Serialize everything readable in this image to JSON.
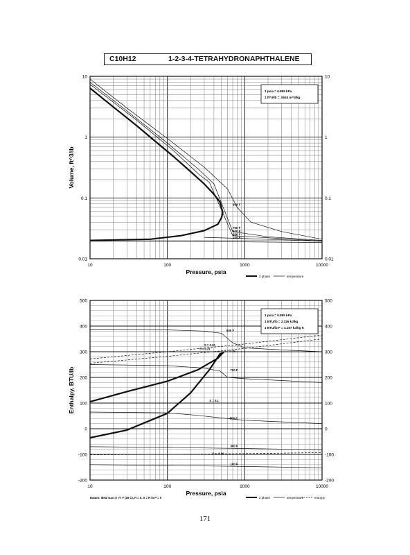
{
  "header": {
    "formula": "C10H12",
    "name": "1-2-3-4-TETRAHYDRONAPHTHALENE"
  },
  "page_number": "171",
  "chart_data": [
    {
      "type": "line",
      "xlabel": "Pressure,  psia",
      "ylabel": "Volume, ft^3/lb",
      "x_scale": "log",
      "y_scale": "log",
      "xlim": [
        10,
        10000
      ],
      "ylim": [
        0.01,
        10
      ],
      "x_ticks": [
        "10",
        "100",
        "1000",
        "10000"
      ],
      "y_ticks": [
        "0.01",
        "0.1",
        "1",
        "10"
      ],
      "conversion_box": [
        "1 psia  =  6.895 kPa",
        "1 ft^3/lb  =  .0624 m^3/kg"
      ],
      "legend": [
        "2 phase",
        "temperature"
      ],
      "isotherm_labels": [
        "900 F",
        "700 F",
        "500 F",
        "300 F",
        "100 F"
      ],
      "series": [
        {
          "name": "2 phase",
          "style": "thick",
          "x": [
            10,
            15,
            25,
            40,
            70,
            120,
            200,
            300,
            400,
            480,
            520,
            500,
            450,
            300,
            150,
            60,
            25,
            10
          ],
          "y": [
            6.4,
            4.2,
            2.5,
            1.55,
            0.85,
            0.48,
            0.27,
            0.17,
            0.115,
            0.085,
            0.058,
            0.047,
            0.037,
            0.029,
            0.024,
            0.021,
            0.0205,
            0.02
          ]
        },
        {
          "name": "900 F",
          "style": "thin",
          "x": [
            10,
            30,
            100,
            300,
            600,
            800,
            1200,
            3000,
            10000
          ],
          "y": [
            9.0,
            3.0,
            0.95,
            0.32,
            0.14,
            0.07,
            0.04,
            0.028,
            0.021
          ]
        },
        {
          "name": "700 F",
          "style": "thin",
          "x": [
            10,
            30,
            100,
            250,
            400,
            700,
            2000,
            10000
          ],
          "y": [
            8.0,
            2.7,
            0.8,
            0.3,
            0.17,
            0.028,
            0.023,
            0.02
          ]
        },
        {
          "name": "500 F",
          "style": "thin",
          "x": [
            10,
            40,
            120,
            250,
            350,
            700,
            3000,
            10000
          ],
          "y": [
            7.4,
            1.9,
            0.6,
            0.25,
            0.18,
            0.024,
            0.0215,
            0.0195
          ]
        },
        {
          "name": "300 F",
          "style": "thin",
          "x": [
            300,
            1000,
            10000
          ],
          "y": [
            0.0225,
            0.0215,
            0.0195
          ]
        },
        {
          "name": "100 F",
          "style": "thin",
          "x": [
            10,
            1000,
            10000
          ],
          "y": [
            0.0195,
            0.019,
            0.0185
          ]
        }
      ]
    },
    {
      "type": "line",
      "xlabel": "Pressure,  psia",
      "ylabel": "Enthalpy, BTU/lb",
      "x_scale": "log",
      "xlim": [
        10,
        10000
      ],
      "ylim": [
        -200,
        500
      ],
      "x_ticks": [
        "10",
        "100",
        "1000",
        "10000"
      ],
      "y_ticks": [
        "-200",
        "-100",
        "0",
        "100",
        "200",
        "300",
        "400",
        "500"
      ],
      "conversion_box": [
        "1 psia  =  6.895 kPa",
        "1 BTU/lb  =  2.326 kJ/kg",
        "1 BTU/lb F  =  4.187 kJ/kg K"
      ],
      "legend": [
        "2 phase",
        "temperature",
        "entropy"
      ],
      "isotherm_labels": [
        "900 F",
        "700 F",
        "500 F",
        "300 F",
        "100 F"
      ],
      "entropy_labels": [
        "S = 0.30",
        "S = 0.21",
        "S = 0.29",
        "S = 0.1",
        "S = -0.09"
      ],
      "datum_note": "Datum: Ideal Gas @ 77 F (25 C),  H = 0,  S = R ln P = 0",
      "series": [
        {
          "name": "2 phase",
          "style": "thick",
          "x": [
            10,
            30,
            100,
            250,
            450,
            520,
            480,
            350,
            200,
            100,
            30,
            10
          ],
          "y": [
            105,
            145,
            185,
            230,
            275,
            295,
            292,
            230,
            140,
            60,
            -5,
            -35
          ]
        },
        {
          "name": "900 F",
          "style": "thin",
          "x": [
            10,
            100,
            300,
            500,
            700,
            1000,
            3000,
            10000
          ],
          "y": [
            388,
            385,
            380,
            372,
            335,
            315,
            307,
            300
          ]
        },
        {
          "name": "700 F",
          "style": "thin",
          "x": [
            10,
            100,
            300,
            480,
            600,
            1000,
            10000
          ],
          "y": [
            250,
            246,
            236,
            225,
            200,
            195,
            180
          ]
        },
        {
          "name": "500 F",
          "style": "thin",
          "x": [
            10,
            100,
            250,
            500,
            1000,
            10000
          ],
          "y": [
            65,
            62,
            52,
            42,
            33,
            20
          ]
        },
        {
          "name": "300 F",
          "style": "thin",
          "x": [
            10,
            100,
            1000,
            10000
          ],
          "y": [
            -70,
            -73,
            -77,
            -82
          ]
        },
        {
          "name": "100 F",
          "style": "thin",
          "x": [
            10,
            100,
            1000,
            10000
          ],
          "y": [
            -140,
            -143,
            -147,
            -152
          ]
        },
        {
          "name": "S = 0.30",
          "style": "dashed",
          "x": [
            10,
            100,
            1000,
            10000
          ],
          "y": [
            272,
            300,
            330,
            365
          ]
        },
        {
          "name": "S = 0.21",
          "style": "dashed",
          "x": [
            10,
            100,
            1000,
            10000
          ],
          "y": [
            255,
            282,
            313,
            350
          ]
        },
        {
          "name": "S = -0.09",
          "style": "dashed",
          "x": [
            10,
            100,
            1000,
            10000
          ],
          "y": [
            -102,
            -100,
            -97,
            -93
          ]
        }
      ]
    }
  ]
}
